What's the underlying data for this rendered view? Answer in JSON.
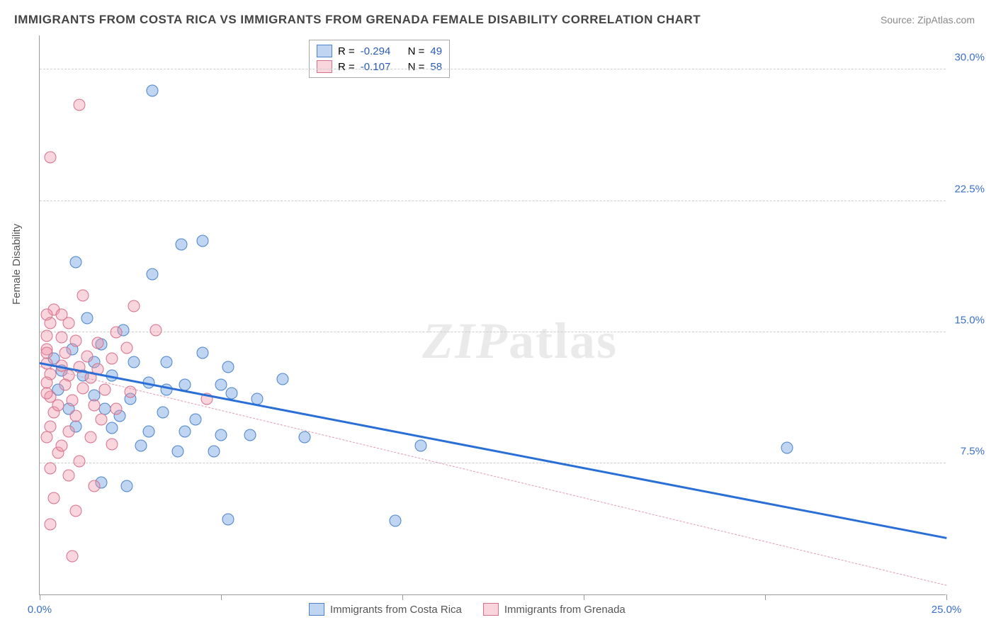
{
  "title": "IMMIGRANTS FROM COSTA RICA VS IMMIGRANTS FROM GRENADA FEMALE DISABILITY CORRELATION CHART",
  "source": "Source: ZipAtlas.com",
  "ylabel": "Female Disability",
  "watermark_a": "ZIP",
  "watermark_b": "atlas",
  "chart": {
    "type": "scatter",
    "xlim": [
      0,
      25
    ],
    "ylim": [
      0,
      32
    ],
    "x_ticks": [
      0,
      5,
      10,
      15,
      20,
      25
    ],
    "x_tick_labels": [
      "0.0%",
      "",
      "",
      "",
      "",
      "25.0%"
    ],
    "y_ticks": [
      7.5,
      15.0,
      22.5,
      30.0
    ],
    "y_tick_labels": [
      "7.5%",
      "15.0%",
      "22.5%",
      "30.0%"
    ],
    "grid_color": "#cccccc",
    "background_color": "#ffffff",
    "series": [
      {
        "name": "Immigrants from Costa Rica",
        "fill": "rgba(112,162,225,0.45)",
        "stroke": "#4a83c9",
        "R": "-0.294",
        "N": "49",
        "trend": {
          "x1": 0,
          "y1": 13.2,
          "x2": 25,
          "y2": 3.2,
          "color": "#2a6fd6",
          "style": "solid",
          "width": 2.5
        },
        "points": [
          [
            3.1,
            28.8
          ],
          [
            3.9,
            20.0
          ],
          [
            4.5,
            20.2
          ],
          [
            3.1,
            18.3
          ],
          [
            1.0,
            19.0
          ],
          [
            1.3,
            15.8
          ],
          [
            2.3,
            15.1
          ],
          [
            1.7,
            14.3
          ],
          [
            0.9,
            14.0
          ],
          [
            0.4,
            13.5
          ],
          [
            1.5,
            13.3
          ],
          [
            2.6,
            13.3
          ],
          [
            3.5,
            13.3
          ],
          [
            4.5,
            13.8
          ],
          [
            5.2,
            13.0
          ],
          [
            0.6,
            12.8
          ],
          [
            1.2,
            12.5
          ],
          [
            2.0,
            12.5
          ],
          [
            3.0,
            12.1
          ],
          [
            4.0,
            12.0
          ],
          [
            5.0,
            12.0
          ],
          [
            6.7,
            12.3
          ],
          [
            0.5,
            11.7
          ],
          [
            1.5,
            11.4
          ],
          [
            2.5,
            11.2
          ],
          [
            3.5,
            11.7
          ],
          [
            5.3,
            11.5
          ],
          [
            6.0,
            11.2
          ],
          [
            0.8,
            10.6
          ],
          [
            1.8,
            10.6
          ],
          [
            2.2,
            10.2
          ],
          [
            3.4,
            10.4
          ],
          [
            4.3,
            10.0
          ],
          [
            1.0,
            9.6
          ],
          [
            2.0,
            9.5
          ],
          [
            3.0,
            9.3
          ],
          [
            4.0,
            9.3
          ],
          [
            5.0,
            9.1
          ],
          [
            5.8,
            9.1
          ],
          [
            7.3,
            9.0
          ],
          [
            10.5,
            8.5
          ],
          [
            20.6,
            8.4
          ],
          [
            2.8,
            8.5
          ],
          [
            3.8,
            8.2
          ],
          [
            4.8,
            8.2
          ],
          [
            1.7,
            6.4
          ],
          [
            2.4,
            6.2
          ],
          [
            5.2,
            4.3
          ],
          [
            9.8,
            4.2
          ]
        ]
      },
      {
        "name": "Immigrants from Grenada",
        "fill": "rgba(240,150,170,0.40)",
        "stroke": "#d66f8b",
        "R": "-0.107",
        "N": "58",
        "trend": {
          "x1": 0,
          "y1": 13.0,
          "x2": 25,
          "y2": 0.5,
          "color": "#e39aad",
          "style": "dashed",
          "width": 1.5
        },
        "points": [
          [
            1.1,
            28.0
          ],
          [
            0.3,
            25.0
          ],
          [
            1.2,
            17.1
          ],
          [
            0.4,
            16.3
          ],
          [
            0.2,
            16.0
          ],
          [
            0.6,
            16.0
          ],
          [
            0.3,
            15.5
          ],
          [
            0.8,
            15.5
          ],
          [
            2.6,
            16.5
          ],
          [
            2.1,
            15.0
          ],
          [
            3.2,
            15.1
          ],
          [
            0.2,
            14.8
          ],
          [
            0.6,
            14.7
          ],
          [
            1.0,
            14.5
          ],
          [
            1.6,
            14.4
          ],
          [
            2.4,
            14.1
          ],
          [
            0.2,
            14.0
          ],
          [
            0.7,
            13.8
          ],
          [
            1.3,
            13.6
          ],
          [
            2.0,
            13.5
          ],
          [
            0.2,
            13.2
          ],
          [
            0.6,
            13.1
          ],
          [
            1.1,
            13.0
          ],
          [
            1.6,
            12.9
          ],
          [
            0.3,
            12.6
          ],
          [
            0.8,
            12.5
          ],
          [
            1.4,
            12.4
          ],
          [
            0.2,
            12.1
          ],
          [
            0.7,
            12.0
          ],
          [
            1.2,
            11.8
          ],
          [
            1.8,
            11.7
          ],
          [
            2.5,
            11.6
          ],
          [
            4.6,
            11.2
          ],
          [
            0.3,
            11.3
          ],
          [
            0.9,
            11.1
          ],
          [
            1.5,
            10.8
          ],
          [
            2.1,
            10.6
          ],
          [
            0.4,
            10.4
          ],
          [
            1.0,
            10.2
          ],
          [
            1.7,
            10.0
          ],
          [
            0.3,
            9.6
          ],
          [
            0.8,
            9.3
          ],
          [
            1.4,
            9.0
          ],
          [
            2.0,
            8.6
          ],
          [
            0.5,
            8.1
          ],
          [
            1.1,
            7.6
          ],
          [
            0.3,
            7.2
          ],
          [
            0.8,
            6.8
          ],
          [
            1.5,
            6.2
          ],
          [
            0.4,
            5.5
          ],
          [
            1.0,
            4.8
          ],
          [
            0.3,
            4.0
          ],
          [
            0.9,
            2.2
          ],
          [
            0.2,
            11.5
          ],
          [
            0.5,
            10.8
          ],
          [
            0.2,
            9.0
          ],
          [
            0.6,
            8.5
          ],
          [
            0.2,
            13.8
          ]
        ]
      }
    ]
  },
  "legend_top": {
    "r_label": "R =",
    "n_label": "N ="
  }
}
